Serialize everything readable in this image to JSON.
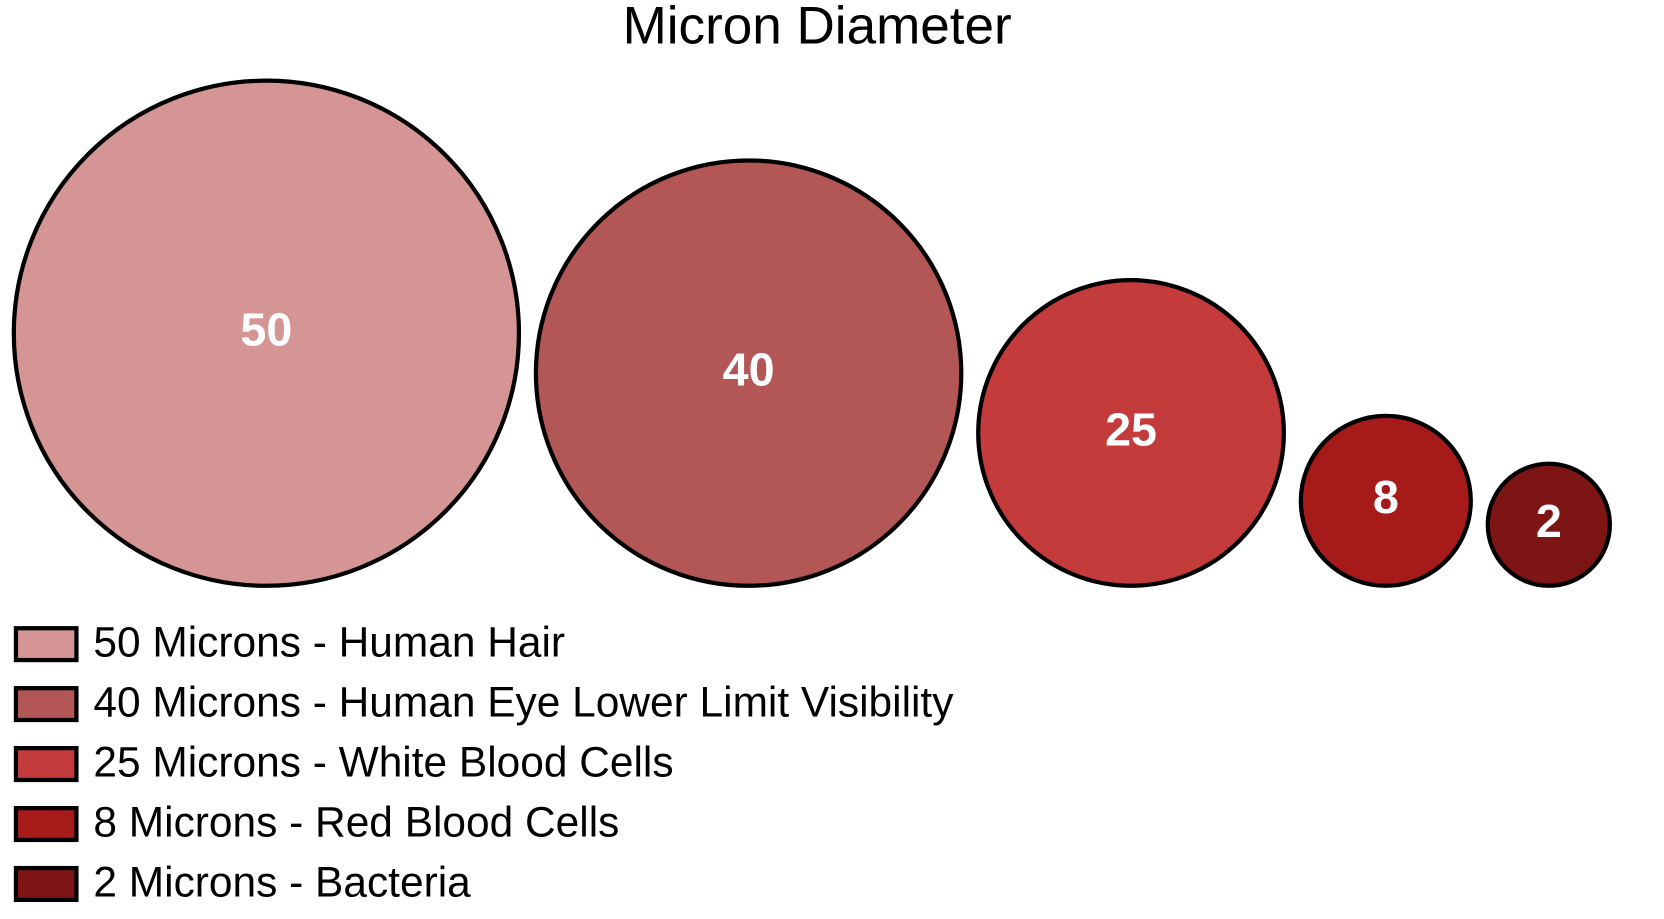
{
  "chart_data": {
    "type": "bubble",
    "title": "Micron Diameter",
    "values": [
      50,
      40,
      25,
      8,
      2
    ],
    "categories": [
      "50 Microns - Human Hair",
      "40 Microns - Human Eye Lower Limit Visibility",
      "25 Microns - White Blood Cells",
      "8 Microns - Red Blood Cells",
      "2 Microns - Bacteria"
    ],
    "colors": [
      "#d69595",
      "#b35656",
      "#c43b3b",
      "#a61a1a",
      "#7e1515"
    ]
  }
}
